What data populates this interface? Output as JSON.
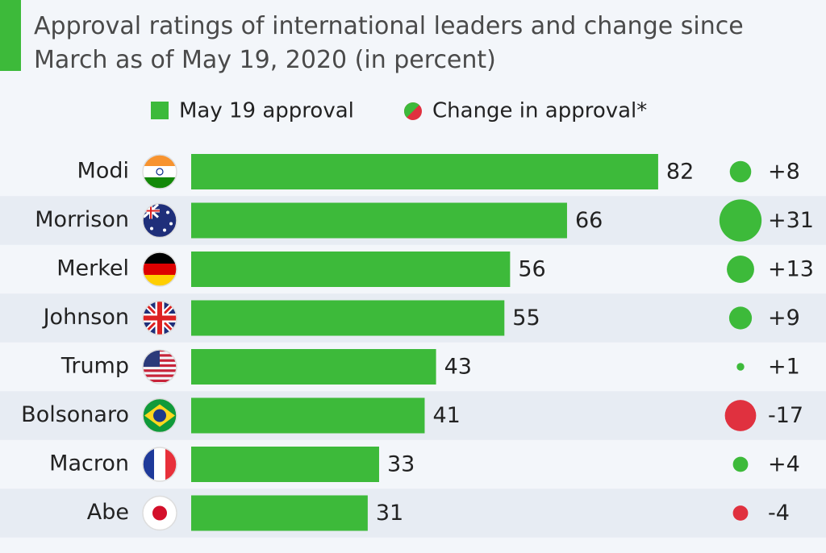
{
  "chart_data": {
    "type": "bar",
    "title": "Approval ratings of international leaders and change since March as of May 19, 2020 (in percent)",
    "categories": [
      "Modi",
      "Morrison",
      "Merkel",
      "Johnson",
      "Trump",
      "Bolsonaro",
      "Macron",
      "Abe"
    ],
    "series": [
      {
        "name": "May 19 approval",
        "color": "#3dba3a",
        "values": [
          82,
          66,
          56,
          55,
          43,
          41,
          33,
          31
        ]
      },
      {
        "name": "Change in approval*",
        "color": "#3dba3a",
        "negative_color": "#e0313f",
        "values": [
          8,
          31,
          13,
          9,
          1,
          -17,
          4,
          -4
        ],
        "value_labels": [
          "+8",
          "+31",
          "+13",
          "+9",
          "+1",
          "-17",
          "+4",
          "-4"
        ]
      }
    ]
  }
}
